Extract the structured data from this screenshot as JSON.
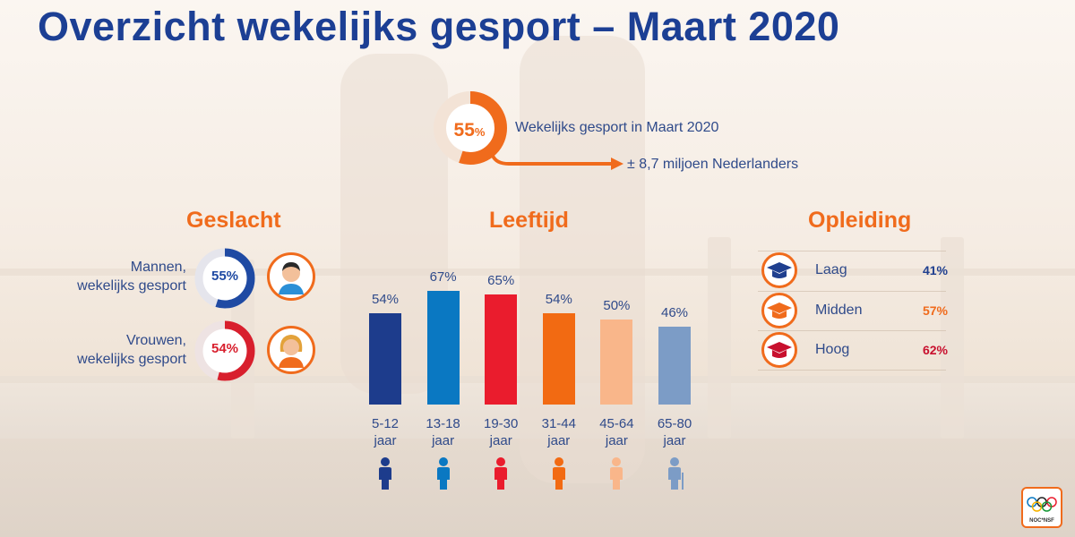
{
  "title": "Overzicht wekelijks gesport – Maart 2020",
  "headline": {
    "percent": "55",
    "percent_sign": "%",
    "value": 55,
    "label": "Wekelijks gesport in Maart 2020",
    "sub": "± 8,7 miljoen Nederlanders"
  },
  "gender": {
    "heading": "Geslacht",
    "items": [
      {
        "label_line1": "Mannen,",
        "label_line2": "wekelijks gesport",
        "pct": "55%",
        "value": 55,
        "color": "#1f4aa3",
        "icon": "man-avatar-icon"
      },
      {
        "label_line1": "Vrouwen,",
        "label_line2": "wekelijks gesport",
        "pct": "54%",
        "value": 54,
        "color": "#d81f2d",
        "icon": "woman-avatar-icon"
      }
    ]
  },
  "age_heading": "Leeftijd",
  "education": {
    "heading": "Opleiding",
    "items": [
      {
        "label": "Laag",
        "pct": "41%",
        "color": "#1f3f8f",
        "icon": "graduation-cap-icon"
      },
      {
        "label": "Midden",
        "pct": "57%",
        "color": "#f06b1c",
        "icon": "graduation-cap-icon"
      },
      {
        "label": "Hoog",
        "pct": "62%",
        "color": "#c8102e",
        "icon": "graduation-cap-icon"
      }
    ]
  },
  "chart_data": {
    "type": "bar",
    "title": "Leeftijd",
    "categories": [
      "5-12 jaar",
      "13-18 jaar",
      "19-30 jaar",
      "31-44 jaar",
      "45-64 jaar",
      "65-80 jaar"
    ],
    "category_lines": [
      [
        "5-12",
        "jaar"
      ],
      [
        "13-18",
        "jaar"
      ],
      [
        "19-30",
        "jaar"
      ],
      [
        "31-44",
        "jaar"
      ],
      [
        "45-64",
        "jaar"
      ],
      [
        "65-80",
        "jaar"
      ]
    ],
    "values": [
      54,
      67,
      65,
      54,
      50,
      46
    ],
    "labels": [
      "54%",
      "67%",
      "65%",
      "54%",
      "50%",
      "46%"
    ],
    "colors": [
      "#1d3c8c",
      "#0a78c2",
      "#ea1c2d",
      "#f26a12",
      "#f9b68a",
      "#7c9cc6"
    ],
    "ylim": [
      0,
      67
    ],
    "xlabel": "",
    "ylabel": ""
  },
  "logo": {
    "text": "NOC*NSF"
  }
}
